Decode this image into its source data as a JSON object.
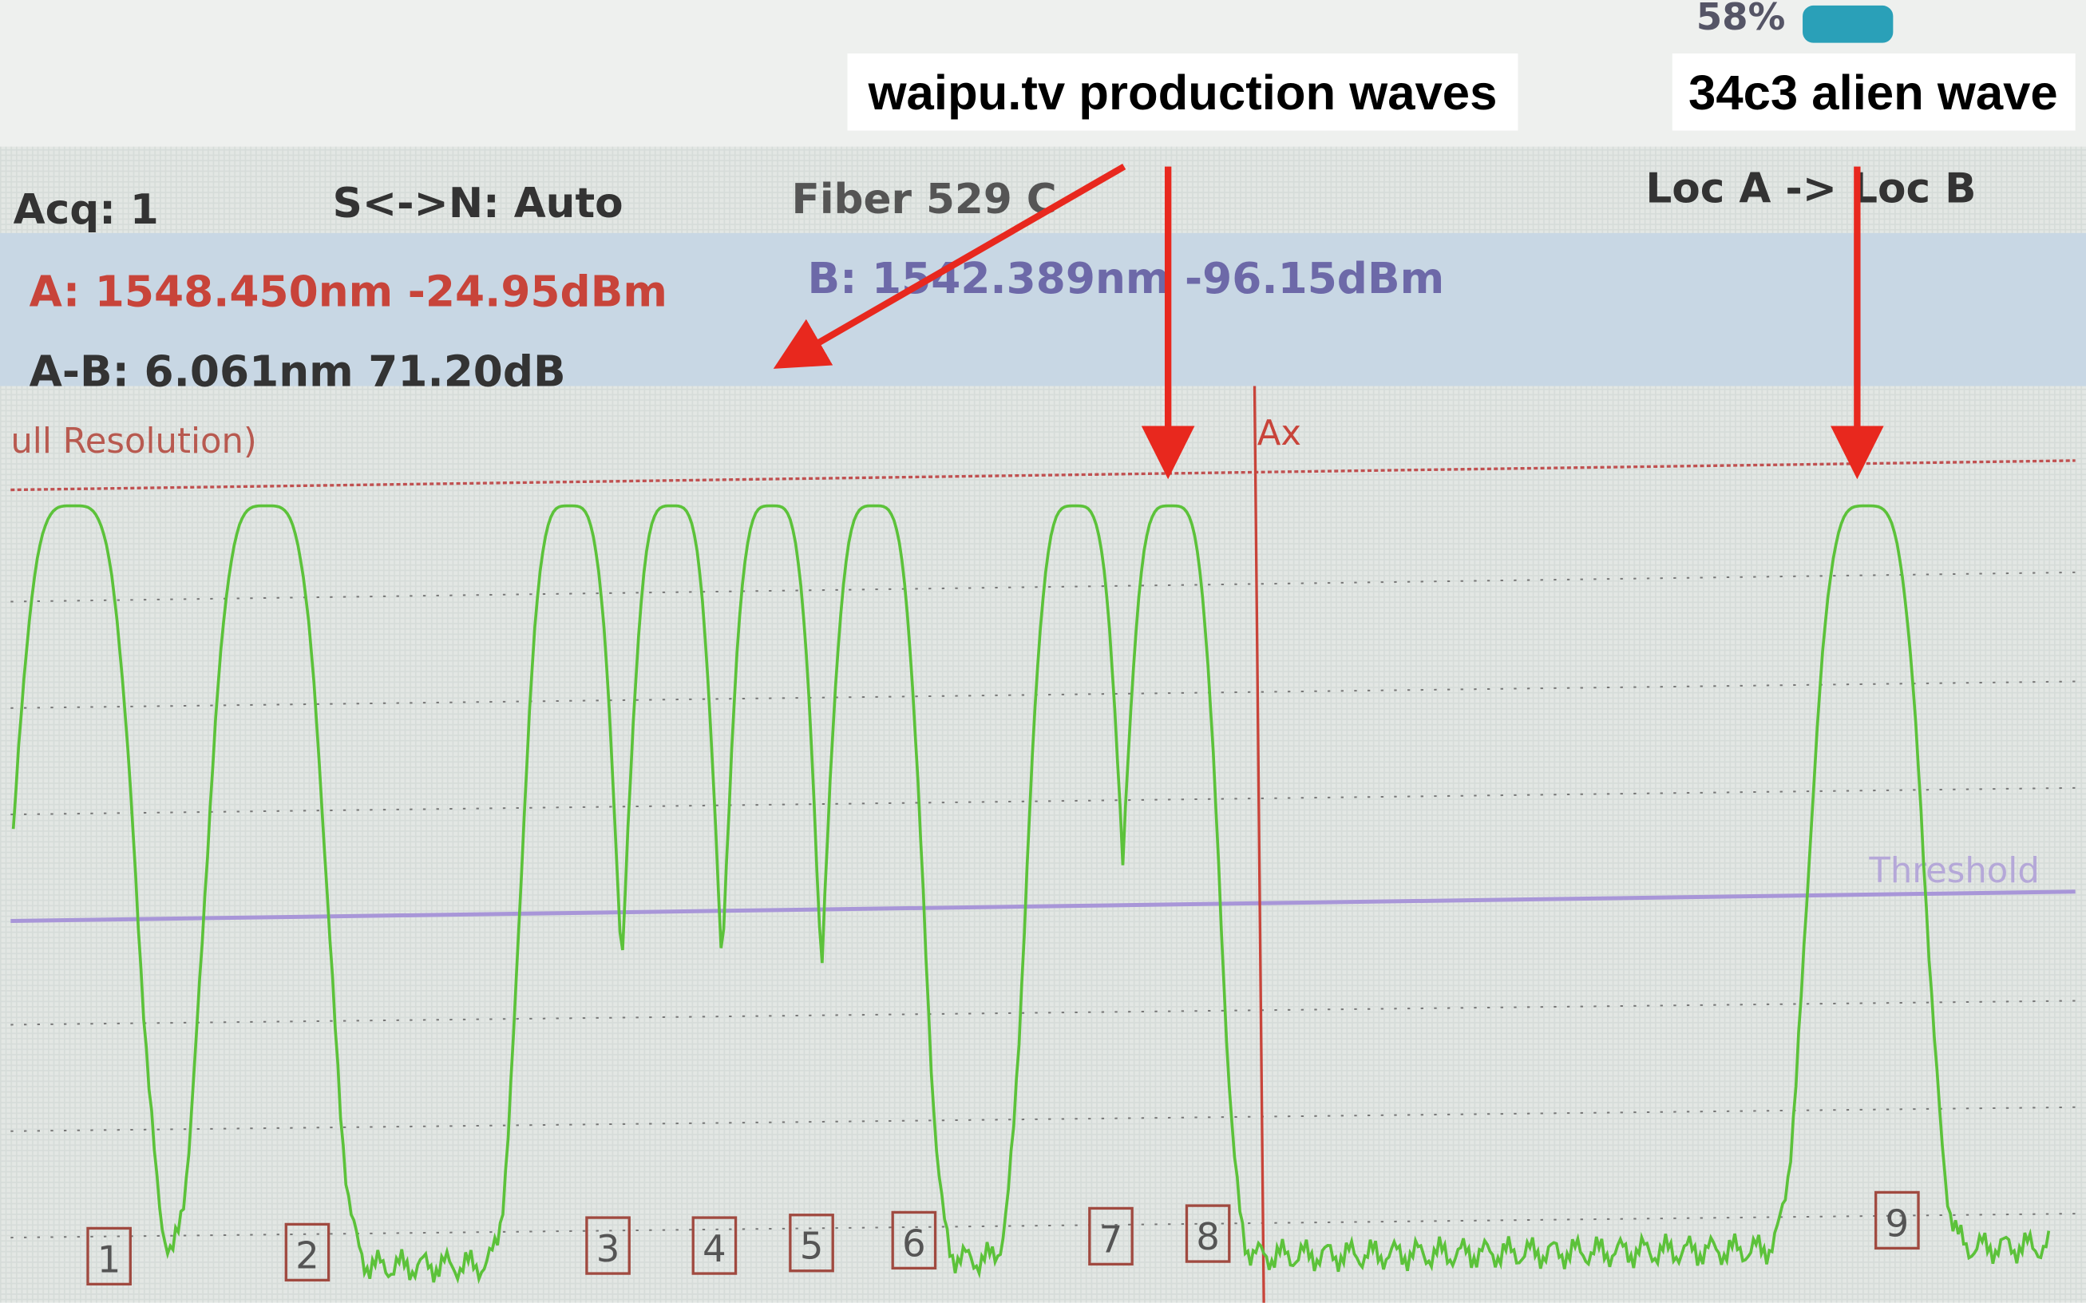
{
  "status": {
    "battery": "58%"
  },
  "annotations": [
    "waipu.tv production waves",
    "34c3 alien wave"
  ],
  "readout": {
    "acq": "Acq: 1",
    "snr": "S<->N: Auto",
    "fiber": "Fiber 529 C",
    "direction": "Loc A -> Loc B",
    "marker_a": "A: 1548.450nm -24.95dBm",
    "marker_b": "B: 1542.389nm -96.15dBm",
    "delta": "A-B: 6.061nm 71.20dB"
  },
  "graph": {
    "mode": "ull Resolution)",
    "marker": "Ax",
    "threshold": "Threshold",
    "channels": [
      "1",
      "2",
      "3",
      "4",
      "5",
      "6",
      "7",
      "8",
      "9"
    ]
  }
}
